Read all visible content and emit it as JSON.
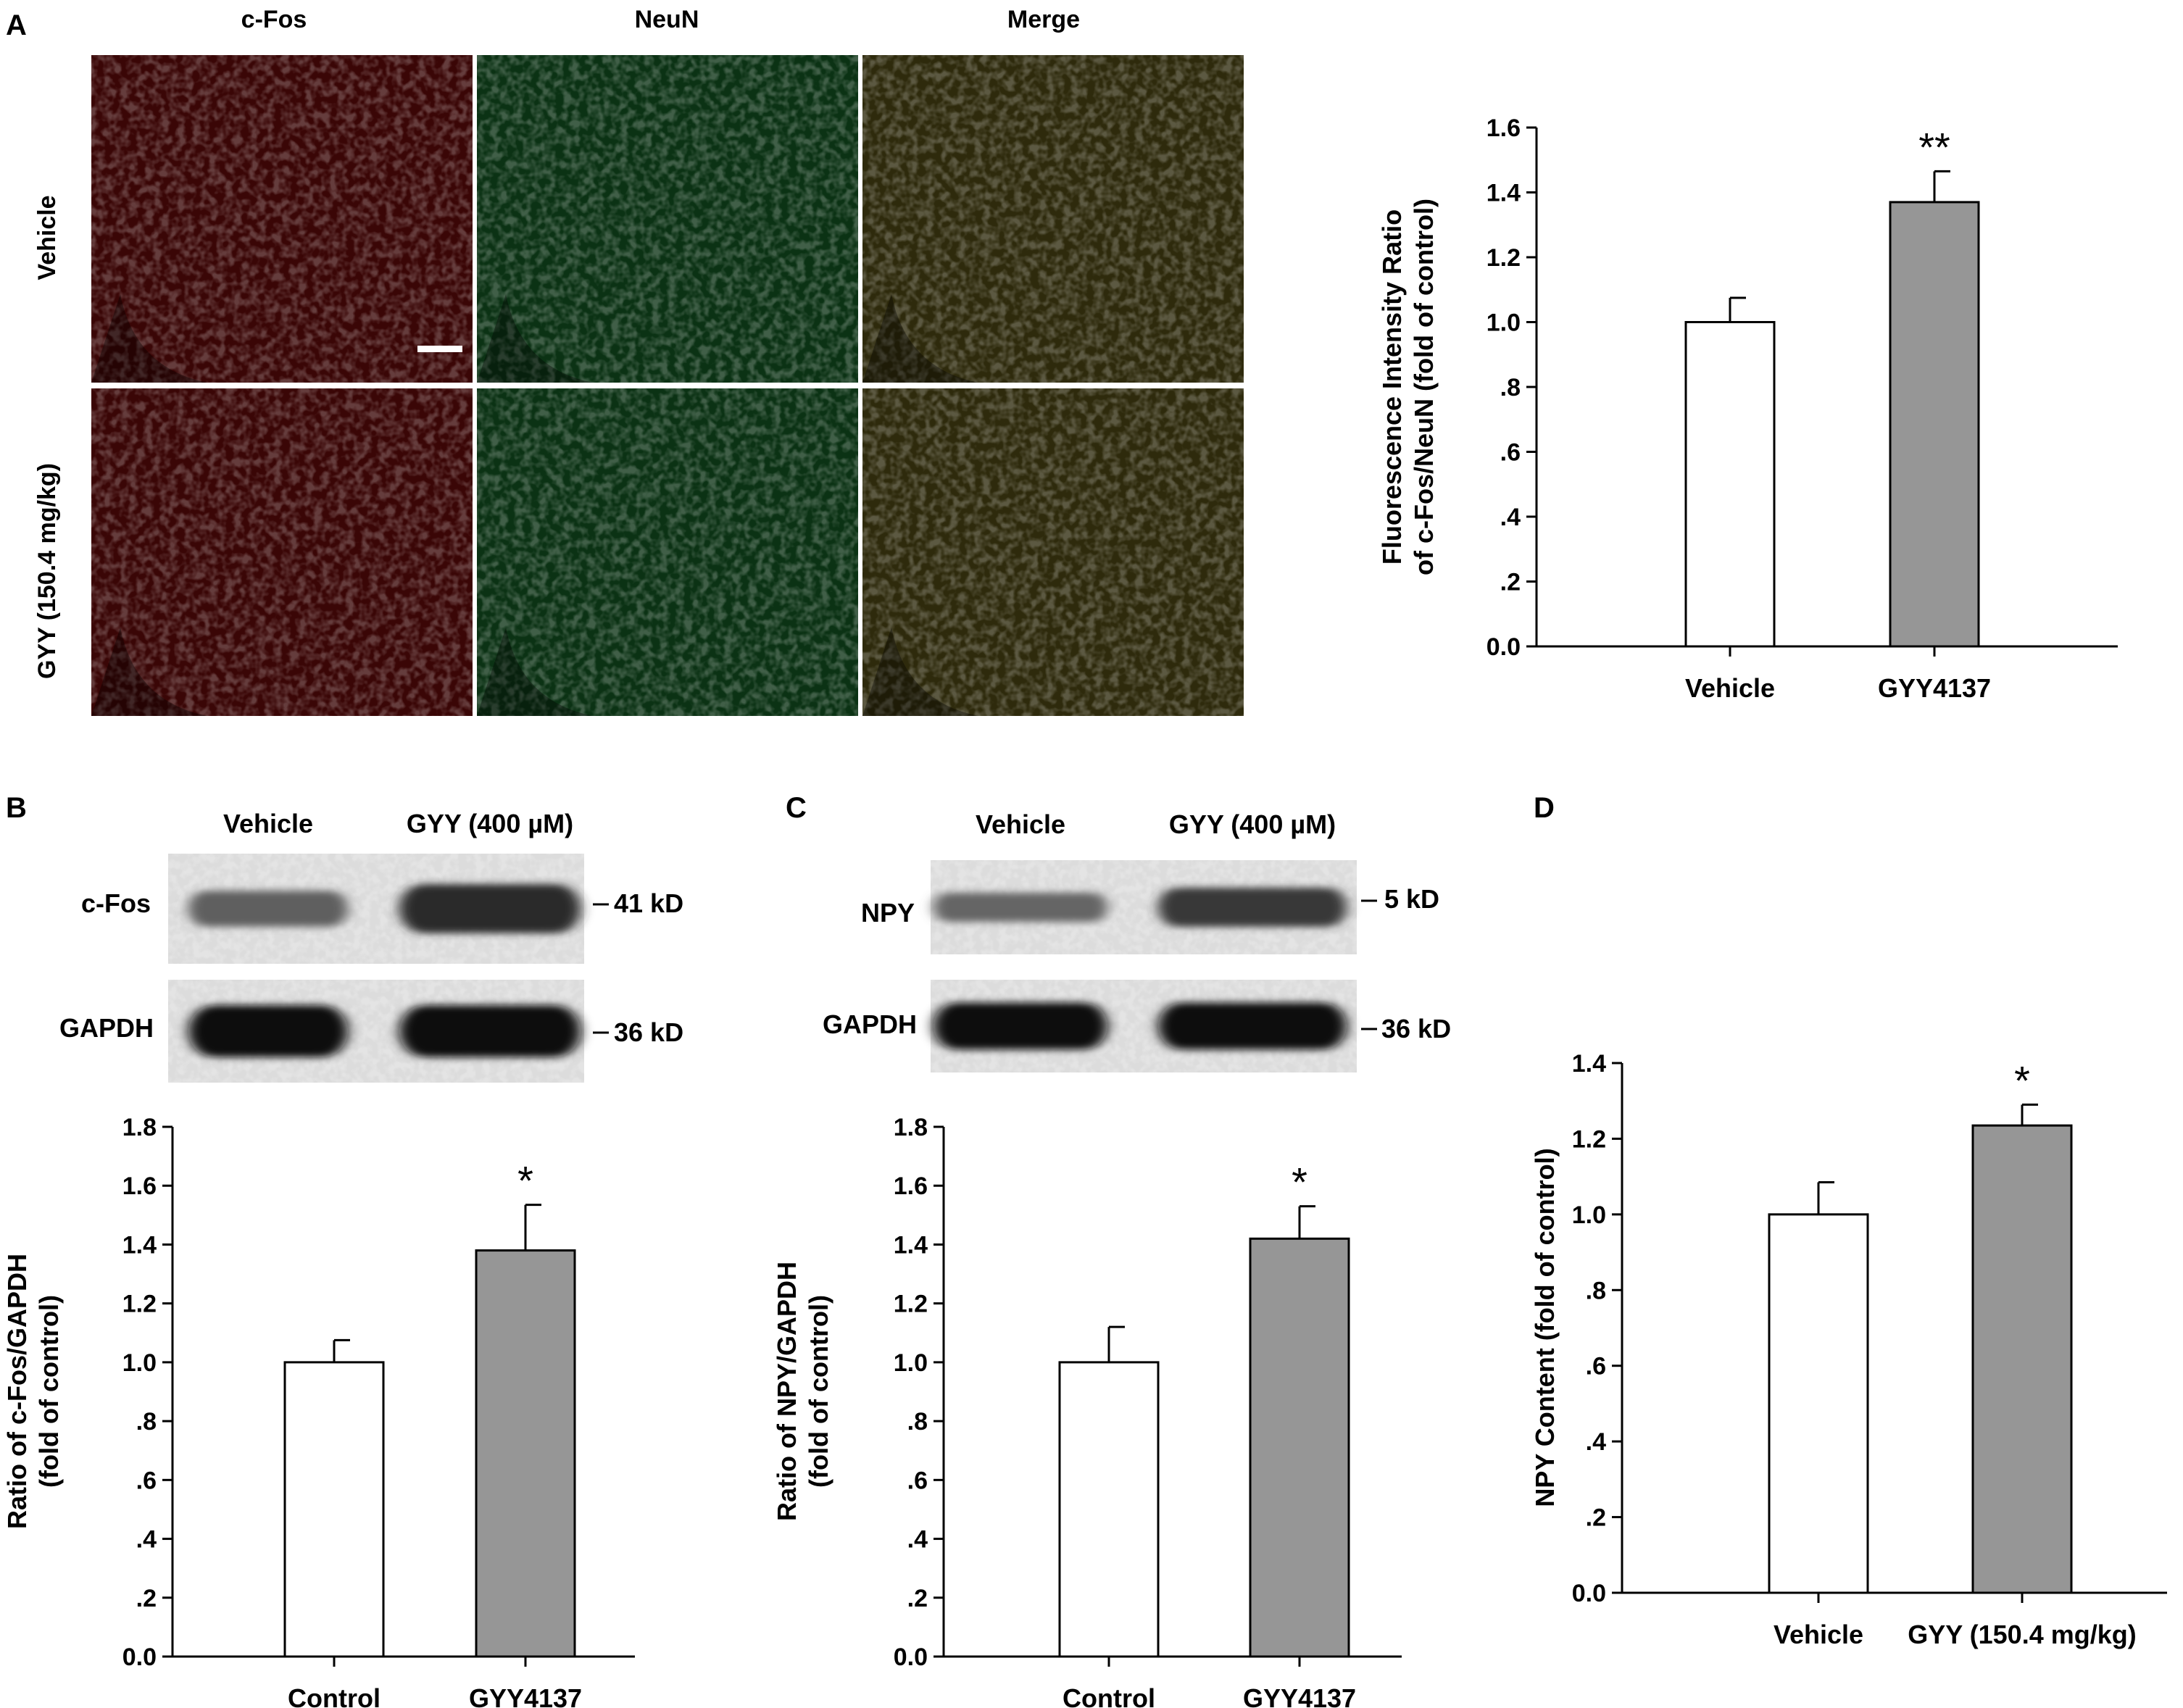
{
  "panels": {
    "a": {
      "letter": "A",
      "micro": {
        "columns": [
          "c-Fos",
          "NeuN",
          "Merge"
        ],
        "rows": [
          "Vehicle",
          "GYY (150.4 mg/kg)"
        ],
        "colors": {
          "cfos": "#3a0606",
          "neun": "#0b3214",
          "merge": "#2e2a0c"
        }
      }
    },
    "b": {
      "letter": "B",
      "blot": {
        "groups": [
          "Vehicle",
          "GYY (400 µM)"
        ],
        "bands": [
          {
            "name": "c-Fos",
            "marker": "41 kD",
            "intensity": [
              0.35,
              0.75
            ]
          },
          {
            "name": "GAPDH",
            "marker": "36 kD",
            "intensity": [
              0.95,
              0.95
            ]
          }
        ]
      }
    },
    "c": {
      "letter": "C",
      "blot": {
        "groups": [
          "Vehicle",
          "GYY (400 µM)"
        ],
        "bands": [
          {
            "name": "NPY",
            "marker": "5 kD",
            "intensity": [
              0.3,
              0.65
            ]
          },
          {
            "name": "GAPDH",
            "marker": "36 kD",
            "intensity": [
              0.95,
              0.95
            ]
          }
        ]
      }
    },
    "d": {
      "letter": "D"
    }
  },
  "chart_data": [
    {
      "panel": "A",
      "type": "bar",
      "categories": [
        "Vehicle",
        "GYY4137"
      ],
      "values": [
        1.0,
        1.37
      ],
      "errors": [
        0.075,
        0.095
      ],
      "significance": [
        "",
        "**"
      ],
      "bar_colors": [
        "#ffffff",
        "#969696"
      ],
      "ylabel_lines": [
        "Fluorescence Intensity Ratio",
        "of c-Fos/NeuN (fold of control)"
      ],
      "ylim": [
        0,
        1.6
      ],
      "yticks": [
        0,
        0.2,
        0.4,
        0.6,
        0.8,
        1.0,
        1.2,
        1.4,
        1.6
      ],
      "yticklabels": [
        "0.0",
        ".2",
        ".4",
        ".6",
        ".8",
        "1.0",
        "1.2",
        "1.4",
        "1.6"
      ]
    },
    {
      "panel": "B",
      "type": "bar",
      "categories": [
        "Control",
        "GYY4137"
      ],
      "values": [
        1.0,
        1.38
      ],
      "errors": [
        0.075,
        0.155
      ],
      "significance": [
        "",
        "*"
      ],
      "bar_colors": [
        "#ffffff",
        "#969696"
      ],
      "ylabel_lines": [
        "Ratio of c-Fos/GAPDH",
        "(fold of control)"
      ],
      "ylim": [
        0,
        1.8
      ],
      "yticks": [
        0,
        0.2,
        0.4,
        0.6,
        0.8,
        1.0,
        1.2,
        1.4,
        1.6,
        1.8
      ],
      "yticklabels": [
        "0.0",
        ".2",
        ".4",
        ".6",
        ".8",
        "1.0",
        "1.2",
        "1.4",
        "1.6",
        "1.8"
      ]
    },
    {
      "panel": "C",
      "type": "bar",
      "categories": [
        "Control",
        "GYY4137"
      ],
      "values": [
        1.0,
        1.42
      ],
      "errors": [
        0.12,
        0.11
      ],
      "significance": [
        "",
        "*"
      ],
      "bar_colors": [
        "#ffffff",
        "#969696"
      ],
      "ylabel_lines": [
        "Ratio of NPY/GAPDH",
        "(fold of control)"
      ],
      "ylim": [
        0,
        1.8
      ],
      "yticks": [
        0,
        0.2,
        0.4,
        0.6,
        0.8,
        1.0,
        1.2,
        1.4,
        1.6,
        1.8
      ],
      "yticklabels": [
        "0.0",
        ".2",
        ".4",
        ".6",
        ".8",
        "1.0",
        "1.2",
        "1.4",
        "1.6",
        "1.8"
      ]
    },
    {
      "panel": "D",
      "type": "bar",
      "categories": [
        "Vehicle",
        "GYY (150.4 mg/kg)"
      ],
      "values": [
        1.0,
        1.235
      ],
      "errors": [
        0.085,
        0.055
      ],
      "significance": [
        "",
        "*"
      ],
      "bar_colors": [
        "#ffffff",
        "#969696"
      ],
      "ylabel_lines": [
        "NPY Content (fold of control)"
      ],
      "ylim": [
        0,
        1.4
      ],
      "yticks": [
        0,
        0.2,
        0.4,
        0.6,
        0.8,
        1.0,
        1.2,
        1.4
      ],
      "yticklabels": [
        "0.0",
        ".2",
        ".4",
        ".6",
        ".8",
        "1.0",
        "1.2",
        "1.4"
      ]
    }
  ]
}
